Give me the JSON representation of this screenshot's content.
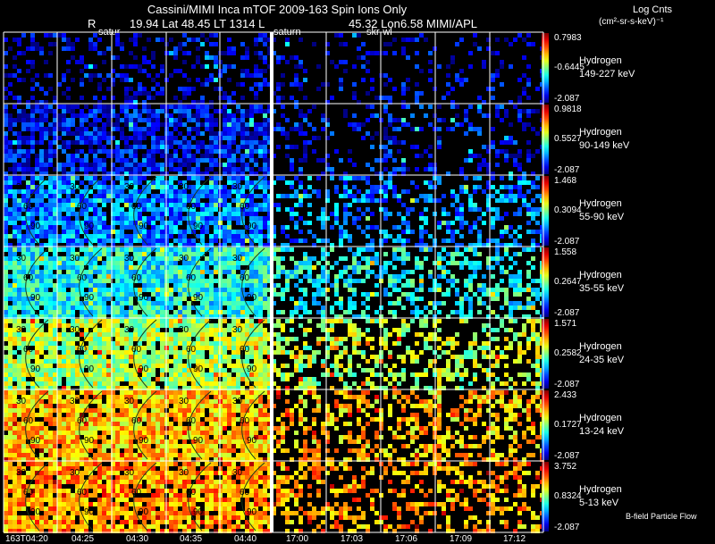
{
  "header": {
    "title": "Cassini/MIMI Inca mTOF  2009-163   Spin    Ions Only",
    "r_label": "R",
    "geo_values": "19.94 Lat 48.45 LT 1314 L",
    "lon_label": "45.32 Lon",
    "tail_values": "6.58   MIMI/APL",
    "label_satur": "satur",
    "label_saturn": "saturn",
    "label_skrwl": "skr-wl"
  },
  "colorbar_title": "Log Cnts",
  "colorbar_units": "(cm²-sr-s-keV)⁻¹",
  "footer_label": "B-field Particle Flow",
  "chart_data": {
    "type": "heatmap",
    "description_units": "Log Cnts",
    "time_ticks": [
      "163T04:20",
      "04:25",
      "04:30",
      "04:35",
      "04:40",
      "17:00",
      "17:03",
      "17:06",
      "17:09",
      "17:12"
    ],
    "time_blocks": [
      {
        "start": "04:20",
        "end": "04:45",
        "columns": 5
      },
      {
        "start": "17:00",
        "end": "17:15",
        "columns": 5
      }
    ],
    "contour_labels": [
      "30",
      "60",
      "90"
    ],
    "panels": [
      {
        "species": "Hydrogen",
        "energy": "149-227 keV",
        "cb_max": "0.7983",
        "cb_mid": "-0.6445",
        "cb_min": "-2.087",
        "level": 0.08,
        "density_left": 0.35,
        "density_right": 0.18
      },
      {
        "species": "Hydrogen",
        "energy": "90-149 keV",
        "cb_max": "0.9818",
        "cb_mid": "0.5527",
        "cb_min": "-2.087",
        "level": 0.12,
        "density_left": 0.75,
        "density_right": 0.25
      },
      {
        "species": "Hydrogen",
        "energy": "55-90 keV",
        "cb_max": "1.468",
        "cb_mid": "0.3094",
        "cb_min": "-2.087",
        "level": 0.25,
        "density_left": 0.85,
        "density_right": 0.4
      },
      {
        "species": "Hydrogen",
        "energy": "35-55 keV",
        "cb_max": "1.558",
        "cb_mid": "0.2647",
        "cb_min": "-2.087",
        "level": 0.38,
        "density_left": 0.9,
        "density_right": 0.45
      },
      {
        "species": "Hydrogen",
        "energy": "24-35 keV",
        "cb_max": "1.571",
        "cb_mid": "0.2582",
        "cb_min": "-2.087",
        "level": 0.55,
        "density_left": 0.9,
        "density_right": 0.45
      },
      {
        "species": "Hydrogen",
        "energy": "13-24 keV",
        "cb_max": "2.433",
        "cb_mid": "0.1727",
        "cb_min": "-2.087",
        "level": 0.68,
        "density_left": 0.9,
        "density_right": 0.45
      },
      {
        "species": "Hydrogen",
        "energy": "5-13 keV",
        "cb_max": "3.752",
        "cb_mid": "0.8324",
        "cb_min": "-2.087",
        "level": 0.72,
        "density_left": 0.85,
        "density_right": 0.4
      }
    ]
  }
}
